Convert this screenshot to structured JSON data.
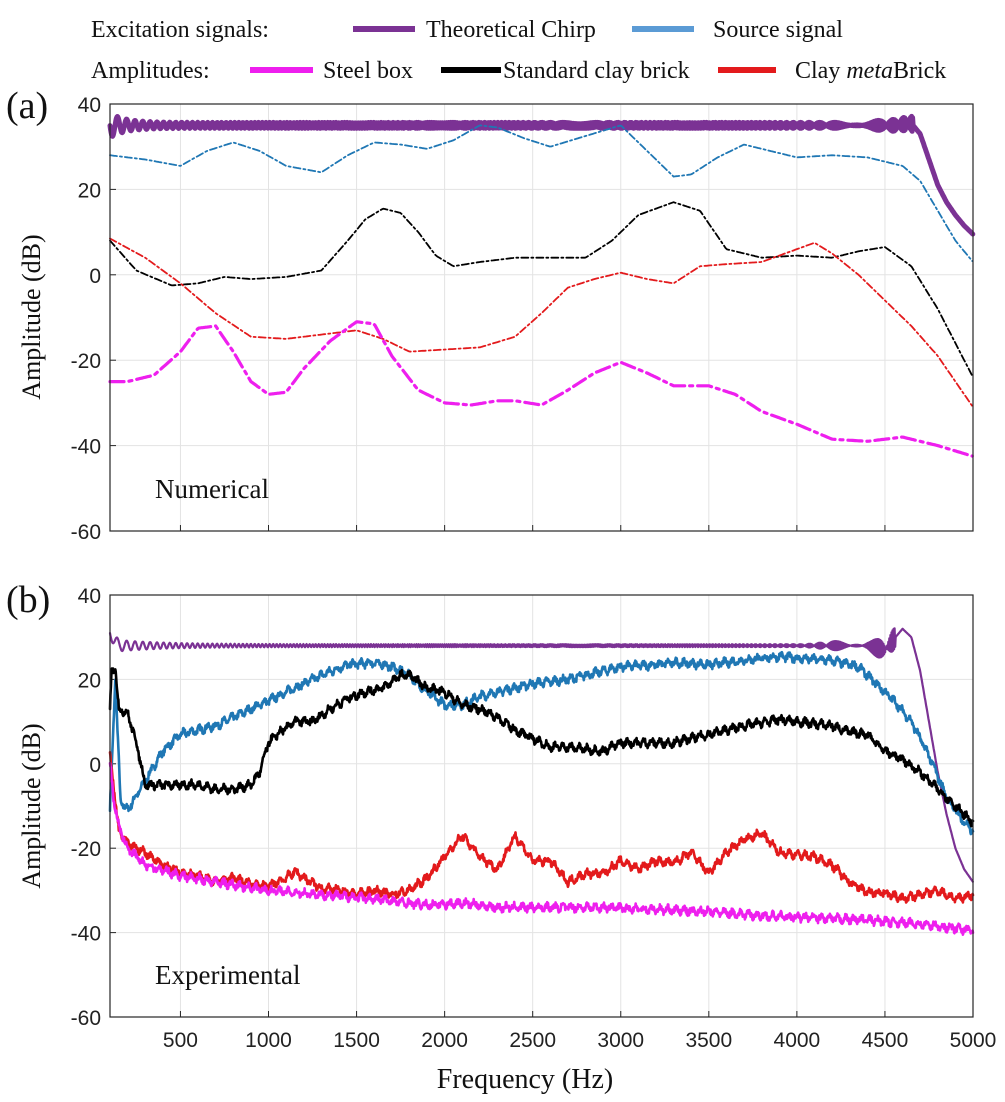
{
  "legend": {
    "excitation_label": "Excitation signals:",
    "amplitudes_label": "Amplitudes:",
    "items": [
      {
        "key": "chirp",
        "label": "Theoretical Chirp",
        "color": "#7b3294"
      },
      {
        "key": "source",
        "label": "Source signal",
        "color": "#5b9bd5"
      },
      {
        "key": "steel",
        "label": "Steel box",
        "color": "#ee1fee"
      },
      {
        "key": "standard",
        "label": "Standard clay brick",
        "color": "#000000"
      },
      {
        "key": "meta",
        "label_prefix": "Clay ",
        "label_italic": "meta",
        "label_suffix": "Brick",
        "color": "#e31a1c"
      }
    ]
  },
  "xlabel": "Frequency (Hz)",
  "chart_data": [
    {
      "type": "line",
      "panel_label": "(a)",
      "annotation": "Numerical",
      "ylabel": "Amplitude (dB)",
      "xlim": [
        100,
        5000
      ],
      "ylim": [
        -60,
        40
      ],
      "xticks": [
        500,
        1000,
        1500,
        2000,
        2500,
        3000,
        3500,
        4000,
        4500,
        5000
      ],
      "yticks": [
        -60,
        -40,
        -20,
        0,
        20,
        40
      ],
      "series": [
        {
          "name": "Theoretical Chirp",
          "style": "chirp",
          "color": "#7b3294",
          "x": [
            100,
            4550,
            4650,
            4700,
            4750,
            4800,
            4850,
            4900,
            4950,
            5000
          ],
          "y": [
            35,
            35,
            35.5,
            33,
            27,
            21,
            17,
            14,
            11.5,
            9.5
          ]
        },
        {
          "name": "Source signal",
          "style": "dashdot",
          "color": "#1f77b4",
          "x": [
            100,
            300,
            500,
            650,
            800,
            950,
            1100,
            1300,
            1450,
            1600,
            1750,
            1900,
            2050,
            2200,
            2300,
            2450,
            2600,
            2800,
            3000,
            3150,
            3300,
            3400,
            3550,
            3700,
            3850,
            4000,
            4200,
            4400,
            4600,
            4700,
            4800,
            4900,
            5000
          ],
          "y": [
            28,
            27,
            25.5,
            29,
            31,
            29,
            25.5,
            24,
            28,
            31,
            30.5,
            29.5,
            31.5,
            35,
            34.5,
            32,
            30,
            32.5,
            35,
            29,
            23,
            23.5,
            27.5,
            30.5,
            29,
            27.5,
            28,
            27.5,
            25.5,
            22,
            15,
            8,
            3
          ]
        },
        {
          "name": "Standard clay brick",
          "style": "dashdot",
          "color": "#000000",
          "x": [
            100,
            250,
            450,
            600,
            750,
            900,
            1100,
            1300,
            1450,
            1550,
            1650,
            1750,
            1850,
            1950,
            2050,
            2200,
            2400,
            2600,
            2800,
            2950,
            3100,
            3300,
            3450,
            3600,
            3800,
            4000,
            4200,
            4350,
            4500,
            4650,
            4800,
            4900,
            5000
          ],
          "y": [
            8,
            1,
            -2.5,
            -2,
            -0.5,
            -1,
            -0.5,
            1,
            8,
            13,
            15.5,
            14.5,
            10,
            4.5,
            2,
            3,
            4,
            4,
            4,
            8,
            14,
            17,
            15,
            6,
            4,
            4.5,
            4,
            5.5,
            6.5,
            2,
            -8,
            -16,
            -24
          ]
        },
        {
          "name": "Clay metaBrick",
          "style": "dashdot",
          "color": "#e31a1c",
          "x": [
            100,
            300,
            500,
            700,
            900,
            1100,
            1300,
            1500,
            1650,
            1800,
            2000,
            2200,
            2400,
            2550,
            2700,
            2850,
            3000,
            3150,
            3300,
            3450,
            3600,
            3800,
            4000,
            4100,
            4200,
            4350,
            4500,
            4650,
            4800,
            5000
          ],
          "y": [
            8.5,
            4,
            -2,
            -9,
            -14.5,
            -15,
            -14,
            -13,
            -15,
            -18,
            -17.5,
            -17,
            -14.5,
            -9,
            -3,
            -1,
            0.5,
            -1,
            -2,
            2,
            2.5,
            3,
            6,
            7.5,
            5,
            0,
            -6,
            -12,
            -19,
            -31
          ]
        },
        {
          "name": "Steel box",
          "style": "dashdot-thick",
          "color": "#ee1fee",
          "x": [
            100,
            200,
            350,
            500,
            600,
            700,
            800,
            900,
            1000,
            1100,
            1200,
            1350,
            1500,
            1600,
            1700,
            1850,
            2000,
            2150,
            2300,
            2400,
            2550,
            2700,
            2850,
            3000,
            3150,
            3300,
            3500,
            3650,
            3800,
            4000,
            4200,
            4400,
            4600,
            4800,
            5000
          ],
          "y": [
            -25,
            -25,
            -23.5,
            -18,
            -12.5,
            -12,
            -18,
            -25,
            -28,
            -27.5,
            -22,
            -15.5,
            -11,
            -11.5,
            -19,
            -27,
            -30,
            -30.5,
            -29.5,
            -29.5,
            -30.5,
            -27,
            -23,
            -20.5,
            -23,
            -26,
            -26,
            -28,
            -32,
            -35,
            -38.5,
            -39,
            -38,
            -40,
            -42.5
          ]
        }
      ]
    },
    {
      "type": "line",
      "panel_label": "(b)",
      "annotation": "Experimental",
      "ylabel": "Amplitude (dB)",
      "xlim": [
        100,
        5000
      ],
      "ylim": [
        -60,
        40
      ],
      "xticks": [
        500,
        1000,
        1500,
        2000,
        2500,
        3000,
        3500,
        4000,
        4500,
        5000
      ],
      "yticks": [
        -60,
        -40,
        -20,
        0,
        20,
        40
      ],
      "series": [
        {
          "name": "Theoretical Chirp",
          "style": "chirp-thin",
          "color": "#7b3294",
          "x": [
            100,
            150,
            400,
            700,
            3500,
            4200,
            4400,
            4500,
            4600,
            4650,
            4700,
            4750,
            4800,
            4850,
            4900,
            4950,
            5000
          ],
          "y": [
            31,
            28,
            28,
            28,
            28,
            28,
            28,
            27,
            32,
            30,
            22,
            10,
            -2,
            -12,
            -20,
            -25,
            -28
          ]
        },
        {
          "name": "Source signal",
          "style": "noisy",
          "color": "#1f77b4",
          "x": [
            100,
            130,
            160,
            200,
            300,
            400,
            500,
            700,
            900,
            1100,
            1300,
            1450,
            1600,
            1700,
            1800,
            1900,
            2000,
            2100,
            2200,
            2300,
            2400,
            2500,
            2700,
            2900,
            3000,
            3200,
            3300,
            3500,
            3700,
            3900,
            4000,
            4200,
            4350,
            4450,
            4550,
            4650,
            4750,
            4850,
            4950,
            5000
          ],
          "y": [
            -11,
            20,
            -9,
            -11,
            -4,
            3,
            7,
            9,
            13,
            17,
            21,
            23.5,
            24,
            23,
            21,
            17,
            14,
            14,
            16,
            17,
            18,
            19,
            20,
            22,
            23,
            23.5,
            24,
            23.5,
            24.5,
            25.5,
            25,
            24.5,
            23,
            19,
            15,
            10,
            2,
            -8,
            -14,
            -16
          ]
        },
        {
          "name": "Standard clay brick",
          "style": "noisy",
          "color": "#000000",
          "x": [
            100,
            110,
            130,
            150,
            200,
            250,
            300,
            350,
            400,
            500,
            600,
            700,
            800,
            900,
            950,
            1000,
            1050,
            1150,
            1250,
            1350,
            1450,
            1550,
            1650,
            1750,
            1800,
            1900,
            2000,
            2100,
            2200,
            2300,
            2400,
            2500,
            2600,
            2700,
            2900,
            3000,
            3200,
            3300,
            3500,
            3700,
            3900,
            4000,
            4200,
            4300,
            4400,
            4500,
            4600,
            4700,
            4800,
            4900,
            5000
          ],
          "y": [
            13,
            22,
            23,
            13,
            12,
            5,
            -5,
            -5,
            -5,
            -5,
            -5,
            -6,
            -6,
            -5,
            -2,
            5,
            7,
            10,
            10,
            13,
            15.5,
            17,
            18,
            21,
            21,
            18,
            17,
            14,
            13,
            11,
            8,
            6,
            4,
            4,
            3,
            5,
            5,
            5,
            7,
            9,
            10.5,
            10,
            9,
            7.5,
            7,
            3,
            1,
            -2,
            -6,
            -10,
            -14
          ]
        },
        {
          "name": "Clay metaBrick",
          "style": "noisy",
          "color": "#e31a1c",
          "x": [
            100,
            150,
            200,
            300,
            400,
            500,
            600,
            700,
            800,
            900,
            1000,
            1100,
            1150,
            1200,
            1300,
            1400,
            1500,
            1600,
            1700,
            1800,
            1900,
            2000,
            2100,
            2200,
            2300,
            2400,
            2500,
            2600,
            2700,
            2800,
            2900,
            3000,
            3100,
            3200,
            3300,
            3400,
            3500,
            3600,
            3700,
            3800,
            3900,
            4000,
            4100,
            4200,
            4300,
            4400,
            4500,
            4600,
            4700,
            4800,
            4900,
            5000
          ],
          "y": [
            2,
            -16,
            -19,
            -21,
            -24,
            -25.5,
            -26.5,
            -28,
            -27,
            -28.5,
            -29,
            -27,
            -25.5,
            -27,
            -29.5,
            -30,
            -31,
            -30,
            -31,
            -30,
            -27,
            -22,
            -17,
            -22,
            -25,
            -17,
            -23,
            -23,
            -28,
            -26,
            -26,
            -23,
            -25,
            -23,
            -23.5,
            -21,
            -26,
            -21,
            -18,
            -16.5,
            -21,
            -21.5,
            -22,
            -24,
            -28,
            -30.5,
            -30.5,
            -32,
            -31,
            -30,
            -32,
            -31
          ]
        },
        {
          "name": "Steel box",
          "style": "noisy",
          "color": "#ee1fee",
          "x": [
            100,
            120,
            150,
            200,
            300,
            500,
            700,
            1000,
            1300,
            1600,
            1900,
            2100,
            2300,
            2600,
            2900,
            3200,
            3500,
            3800,
            4100,
            4400,
            4700,
            5000
          ],
          "y": [
            0,
            -8,
            -15,
            -20,
            -24,
            -26.5,
            -28,
            -30,
            -31,
            -32,
            -33.5,
            -33,
            -34,
            -34,
            -34,
            -34.5,
            -35,
            -36,
            -36.5,
            -37,
            -38,
            -39.5
          ]
        }
      ]
    }
  ]
}
